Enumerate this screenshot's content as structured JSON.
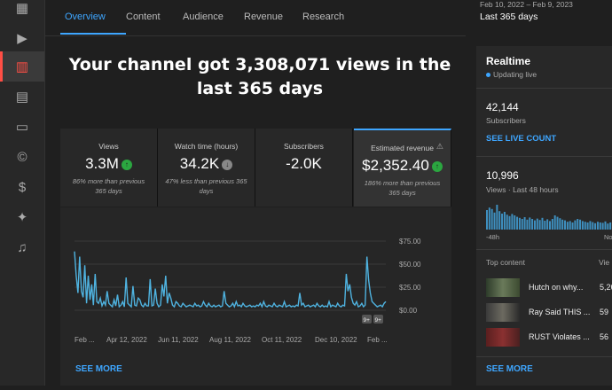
{
  "tabs": [
    {
      "label": "Overview",
      "active": true
    },
    {
      "label": "Content",
      "active": false
    },
    {
      "label": "Audience",
      "active": false
    },
    {
      "label": "Revenue",
      "active": false
    },
    {
      "label": "Research",
      "active": false
    }
  ],
  "headline": "Your channel got 3,308,071 views in the last 365 days",
  "cards": [
    {
      "label": "Views",
      "value": "3.3M",
      "trend": "up",
      "sub": "86% more than previous 365 days"
    },
    {
      "label": "Watch time (hours)",
      "value": "34.2K",
      "trend": "down",
      "sub": "47% less than previous 365 days"
    },
    {
      "label": "Subscribers",
      "value": "-2.0K",
      "trend": "",
      "sub": ""
    },
    {
      "label": "Estimated revenue",
      "value": "$2,352.40",
      "trend": "up",
      "sub": "186% more than previous 365 days",
      "selected": true
    }
  ],
  "see_more": "SEE MORE",
  "date_range": {
    "range": "Feb 10, 2022 – Feb 9, 2023",
    "label": "Last 365 days"
  },
  "realtime": {
    "title": "Realtime",
    "status": "Updating live",
    "subscribers": "42,144",
    "subscribers_label": "Subscribers",
    "live_count": "SEE LIVE COUNT",
    "views": "10,996",
    "views_label": "Views · Last 48 hours",
    "axis_left": "-48h",
    "axis_right": "No",
    "top_content_label": "Top content",
    "top_content_right": "Vie",
    "top_content": [
      {
        "title": "Hutch on why...",
        "value": "5,26"
      },
      {
        "title": "Ray Said THIS ...",
        "value": "59"
      },
      {
        "title": "RUST Violates ...",
        "value": "56"
      }
    ],
    "see_more": "SEE MORE",
    "bars": [
      55,
      62,
      58,
      48,
      70,
      52,
      45,
      50,
      42,
      38,
      44,
      40,
      36,
      33,
      30,
      35,
      28,
      34,
      30,
      26,
      31,
      27,
      33,
      25,
      29,
      24,
      30,
      40,
      36,
      32,
      28,
      26,
      22,
      24,
      20,
      26,
      30,
      28,
      24,
      22,
      20,
      24,
      21,
      18,
      22,
      20,
      19,
      23,
      17,
      20
    ]
  },
  "chart_data": {
    "type": "line",
    "x_ticks": [
      "Feb ...",
      "Apr 12, 2022",
      "Jun 11, 2022",
      "Aug 11, 2022",
      "Oct 11, 2022",
      "Dec 10, 2022",
      "Feb ..."
    ],
    "y_ticks": [
      "$75.00",
      "$50.00",
      "$25.00",
      "$0.00"
    ],
    "ylim": [
      0,
      80
    ],
    "badges": [
      "9+",
      "9+"
    ],
    "values": [
      68,
      40,
      20,
      62,
      22,
      15,
      52,
      8,
      40,
      12,
      30,
      6,
      42,
      10,
      8,
      14,
      5,
      10,
      6,
      22,
      8,
      6,
      4,
      12,
      5,
      18,
      4,
      6,
      10,
      4,
      38,
      8,
      6,
      4,
      28,
      6,
      5,
      14,
      12,
      6,
      4,
      8,
      5,
      5,
      36,
      5,
      6,
      25,
      8,
      4,
      6,
      30,
      16,
      40,
      8,
      20,
      14,
      6,
      4,
      10,
      8,
      5,
      4,
      8,
      6,
      4,
      5,
      6,
      5,
      4,
      8,
      5,
      6,
      4,
      5,
      10,
      6,
      4,
      8,
      5,
      4,
      6,
      4,
      5,
      6,
      4,
      5,
      22,
      8,
      6,
      4,
      5,
      8,
      4,
      10,
      5,
      6,
      4,
      8,
      5,
      4,
      5,
      6,
      4,
      5,
      4,
      6,
      5,
      8,
      4,
      10,
      5,
      4,
      6,
      5,
      4,
      8,
      5,
      4,
      6,
      5,
      4,
      10,
      4,
      5,
      6,
      4,
      5,
      4,
      6,
      5,
      20,
      6,
      8,
      4,
      5,
      6,
      4,
      5,
      6,
      4,
      8,
      5,
      4,
      6,
      4,
      5,
      4,
      10,
      4,
      6,
      5,
      4,
      8,
      5,
      4,
      6,
      5,
      42,
      22,
      30,
      15,
      8,
      6,
      10,
      4,
      5,
      8,
      4,
      6,
      62,
      35,
      20,
      10,
      8,
      6,
      4,
      5,
      6,
      4,
      8,
      10
    ]
  }
}
